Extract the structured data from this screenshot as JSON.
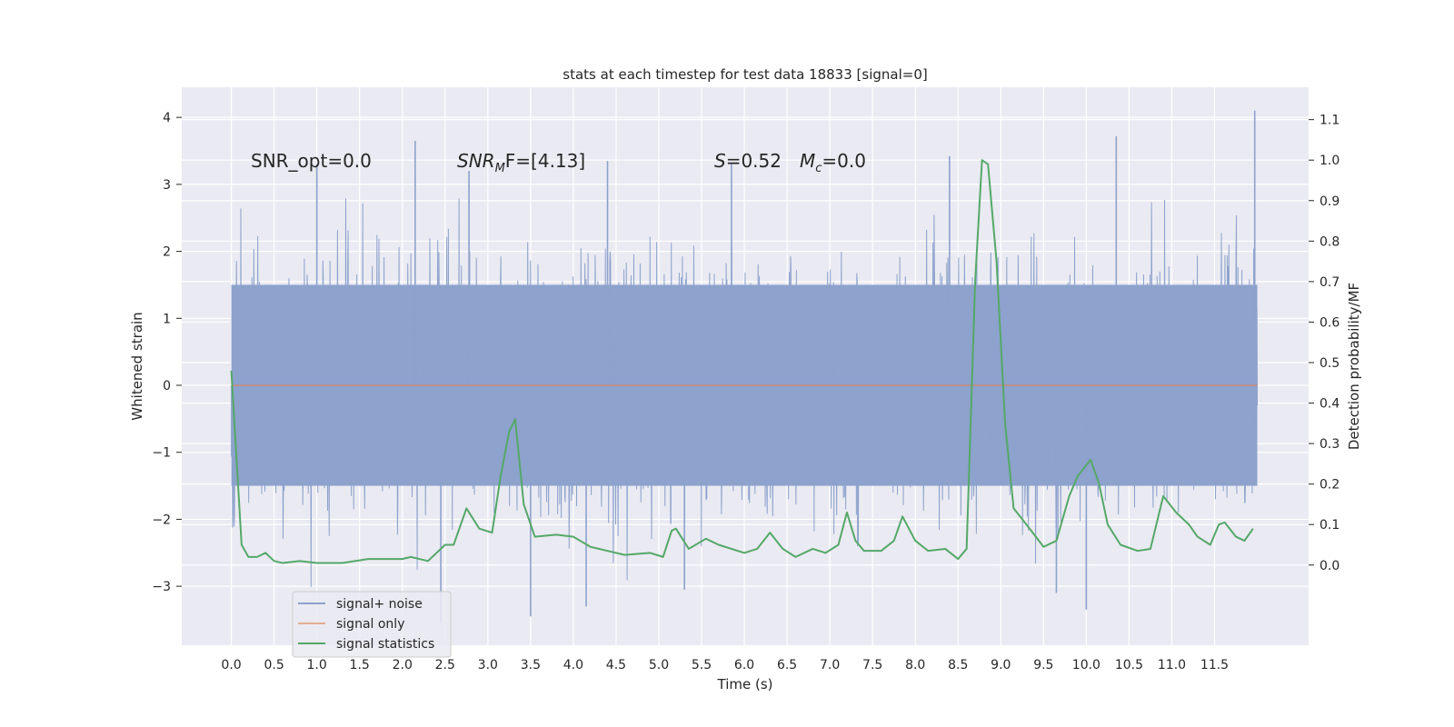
{
  "chart_data": {
    "type": "line",
    "title": "stats at each timestep for test data 18833 [signal=0]",
    "xlabel": "Time (s)",
    "ylabel": "Whitened strain",
    "ylabel_right": "Detection probability/MF",
    "xlim": [
      -0.58,
      12.6
    ],
    "ylim": [
      -3.88,
      4.45
    ],
    "ylim_right": [
      -0.198,
      1.18
    ],
    "x_ticks": [
      "0.0",
      "0.5",
      "1.0",
      "1.5",
      "2.0",
      "2.5",
      "3.0",
      "3.5",
      "4.0",
      "4.5",
      "5.0",
      "5.5",
      "6.0",
      "6.5",
      "7.0",
      "7.5",
      "8.0",
      "8.5",
      "9.0",
      "9.5",
      "10.0",
      "10.5",
      "11.0",
      "11.5"
    ],
    "y_ticks": [
      "4",
      "3",
      "2",
      "1",
      "0",
      "−1",
      "−2",
      "−3"
    ],
    "y_ticks_right": [
      "1.1",
      "1.0",
      "0.9",
      "0.8",
      "0.7",
      "0.6",
      "0.5",
      "0.4",
      "0.3",
      "0.2",
      "0.1",
      "0.0"
    ],
    "annotations": {
      "snr_opt": "SNR_opt=0.0",
      "snr_mf_name": "SNR",
      "snr_mf_sub": "M",
      "snr_mf_rest": "F=[4.13]",
      "s_name": "S",
      "s_rest": "=0.52",
      "mc_name": "M",
      "mc_sub": "c",
      "mc_rest": "=0.0"
    },
    "noise_band": {
      "x_start": 0.0,
      "x_end": 12.0,
      "core_min": -1.5,
      "core_max": 1.5,
      "seed": 18833
    },
    "noise_spikes": [
      {
        "x": 1.0,
        "y": 3.3
      },
      {
        "x": 2.15,
        "y": 3.65
      },
      {
        "x": 2.78,
        "y": 3.2
      },
      {
        "x": 4.4,
        "y": 3.35
      },
      {
        "x": 5.85,
        "y": 3.3
      },
      {
        "x": 8.4,
        "y": 3.42
      },
      {
        "x": 10.35,
        "y": 3.72
      },
      {
        "x": 11.97,
        "y": 4.1
      },
      {
        "x": 3.5,
        "y": -3.45
      },
      {
        "x": 2.45,
        "y": -3.55
      },
      {
        "x": 4.15,
        "y": -3.3
      },
      {
        "x": 10.0,
        "y": -3.35
      },
      {
        "x": 9.65,
        "y": -3.1
      },
      {
        "x": 5.3,
        "y": -3.05
      }
    ],
    "series": [
      {
        "name": "signal+ noise",
        "color": "#8da2cc"
      },
      {
        "name": "signal only",
        "color": "#dd8452",
        "values": [
          [
            0.0,
            0.0
          ],
          [
            12.0,
            0.0
          ]
        ]
      },
      {
        "name": "signal statistics",
        "color": "#55a868",
        "values": [
          [
            0.0,
            0.48
          ],
          [
            0.05,
            0.3
          ],
          [
            0.12,
            0.05
          ],
          [
            0.2,
            0.02
          ],
          [
            0.3,
            0.02
          ],
          [
            0.4,
            0.03
          ],
          [
            0.5,
            0.01
          ],
          [
            0.6,
            0.005
          ],
          [
            0.8,
            0.01
          ],
          [
            1.0,
            0.005
          ],
          [
            1.3,
            0.005
          ],
          [
            1.6,
            0.015
          ],
          [
            2.0,
            0.015
          ],
          [
            2.1,
            0.02
          ],
          [
            2.3,
            0.01
          ],
          [
            2.5,
            0.05
          ],
          [
            2.6,
            0.05
          ],
          [
            2.75,
            0.14
          ],
          [
            2.9,
            0.09
          ],
          [
            3.05,
            0.08
          ],
          [
            3.15,
            0.22
          ],
          [
            3.25,
            0.33
          ],
          [
            3.32,
            0.36
          ],
          [
            3.42,
            0.15
          ],
          [
            3.55,
            0.07
          ],
          [
            3.8,
            0.075
          ],
          [
            4.0,
            0.07
          ],
          [
            4.2,
            0.045
          ],
          [
            4.4,
            0.035
          ],
          [
            4.6,
            0.025
          ],
          [
            4.9,
            0.03
          ],
          [
            5.05,
            0.02
          ],
          [
            5.15,
            0.085
          ],
          [
            5.2,
            0.09
          ],
          [
            5.35,
            0.04
          ],
          [
            5.55,
            0.065
          ],
          [
            5.7,
            0.05
          ],
          [
            6.0,
            0.03
          ],
          [
            6.15,
            0.04
          ],
          [
            6.3,
            0.08
          ],
          [
            6.45,
            0.04
          ],
          [
            6.6,
            0.02
          ],
          [
            6.8,
            0.04
          ],
          [
            6.95,
            0.03
          ],
          [
            7.1,
            0.05
          ],
          [
            7.2,
            0.13
          ],
          [
            7.3,
            0.06
          ],
          [
            7.4,
            0.035
          ],
          [
            7.6,
            0.035
          ],
          [
            7.75,
            0.06
          ],
          [
            7.85,
            0.12
          ],
          [
            8.0,
            0.06
          ],
          [
            8.15,
            0.035
          ],
          [
            8.35,
            0.04
          ],
          [
            8.5,
            0.015
          ],
          [
            8.6,
            0.04
          ],
          [
            8.7,
            0.7
          ],
          [
            8.78,
            1.0
          ],
          [
            8.85,
            0.99
          ],
          [
            8.95,
            0.75
          ],
          [
            9.05,
            0.35
          ],
          [
            9.15,
            0.14
          ],
          [
            9.3,
            0.1
          ],
          [
            9.5,
            0.045
          ],
          [
            9.65,
            0.06
          ],
          [
            9.8,
            0.17
          ],
          [
            9.9,
            0.22
          ],
          [
            10.05,
            0.26
          ],
          [
            10.15,
            0.2
          ],
          [
            10.25,
            0.1
          ],
          [
            10.4,
            0.05
          ],
          [
            10.6,
            0.035
          ],
          [
            10.75,
            0.04
          ],
          [
            10.9,
            0.17
          ],
          [
            11.05,
            0.13
          ],
          [
            11.2,
            0.1
          ],
          [
            11.3,
            0.07
          ],
          [
            11.45,
            0.05
          ],
          [
            11.55,
            0.1
          ],
          [
            11.62,
            0.105
          ],
          [
            11.75,
            0.07
          ],
          [
            11.85,
            0.06
          ],
          [
            11.95,
            0.09
          ]
        ]
      }
    ],
    "legend_position": "lower-left"
  }
}
